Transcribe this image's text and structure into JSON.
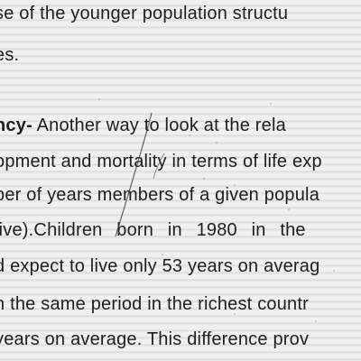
{
  "document": {
    "lines": [
      "se of the younger population structu",
      "es.",
      "Another way to look at the rela",
      "opment and mortality in terms of life exp",
      "ber of years members of a given popula",
      "live).Children born in 1980 in the",
      "d expect to live only 53 years on averag",
      "n the same period in the richest countr",
      "years on average. This difference prov"
    ],
    "heading_fragment": "ncy-"
  }
}
